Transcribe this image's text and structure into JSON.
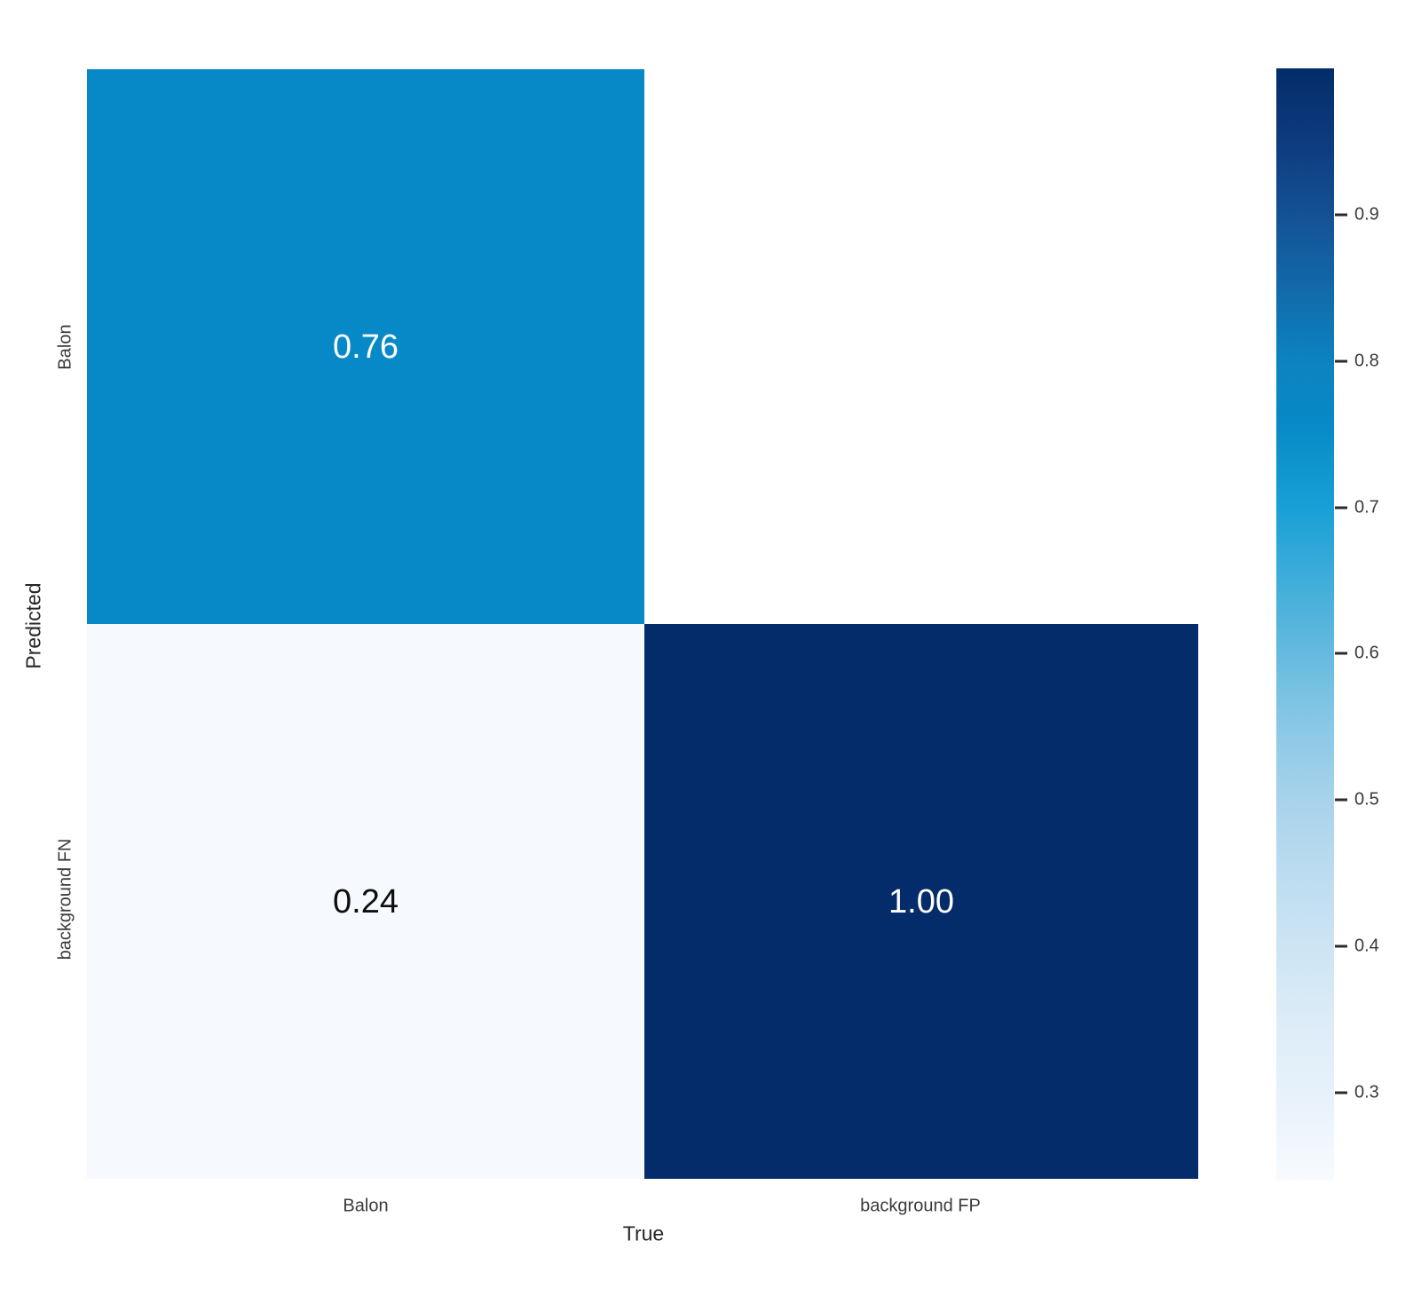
{
  "chart_data": {
    "type": "heatmap",
    "title": "",
    "xlabel": "True",
    "ylabel": "Predicted",
    "x_categories": [
      "Balon",
      "background FP"
    ],
    "y_categories": [
      "Balon",
      "background FN"
    ],
    "matrix": [
      [
        0.76,
        null
      ],
      [
        0.24,
        1.0
      ]
    ],
    "cell_labels": [
      [
        "0.76",
        ""
      ],
      [
        "0.24",
        "1.00"
      ]
    ],
    "cell_colors": [
      [
        "#0689c6",
        "#ffffff"
      ],
      [
        "#f6fafe",
        "#042c6a"
      ]
    ],
    "cell_text_colors": [
      [
        "#ffffff",
        ""
      ],
      [
        "#0e0e0e",
        "#ffffff"
      ]
    ],
    "vmin": 0.24,
    "vmax": 1.0,
    "legend_position": "right",
    "grid": false,
    "colorbar": {
      "tick_values": [
        0.9,
        0.8,
        0.7,
        0.6,
        0.5,
        0.4,
        0.3
      ],
      "tick_labels": [
        "0.9",
        "0.8",
        "0.7",
        "0.6",
        "0.5",
        "0.4",
        "0.3"
      ]
    },
    "colors": {
      "background": "#ffffff",
      "empty_cell": "#ffffff",
      "axis_tick_text": "#3a3a3a",
      "axis_label_text": "#262626",
      "gradient_stops": [
        {
          "p": 0,
          "c": "#042c6a"
        },
        {
          "p": 6.5,
          "c": "#0d3b7e"
        },
        {
          "p": 13,
          "c": "#145094"
        },
        {
          "p": 19.7,
          "c": "#1269aa"
        },
        {
          "p": 26.3,
          "c": "#0c83c0"
        },
        {
          "p": 31.6,
          "c": "#0689c6"
        },
        {
          "p": 39.5,
          "c": "#18a0d6"
        },
        {
          "p": 46,
          "c": "#3fadda"
        },
        {
          "p": 52.6,
          "c": "#65bade"
        },
        {
          "p": 59.2,
          "c": "#8ac8e6"
        },
        {
          "p": 65.8,
          "c": "#a8d3eb"
        },
        {
          "p": 72.4,
          "c": "#bcdcf0"
        },
        {
          "p": 78.9,
          "c": "#cde4f4"
        },
        {
          "p": 85.5,
          "c": "#dcecf8"
        },
        {
          "p": 92.1,
          "c": "#e7f1fa"
        },
        {
          "p": 100,
          "c": "#f7fbfe"
        }
      ]
    }
  }
}
